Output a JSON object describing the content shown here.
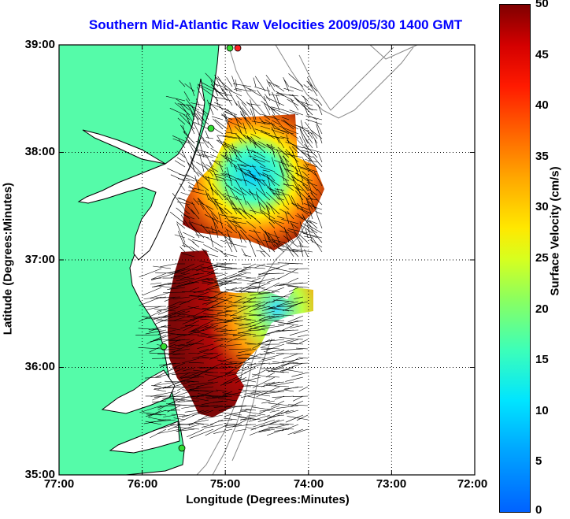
{
  "title": "Southern Mid-Atlantic Raw Velocities 2009/05/30 1400 GMT",
  "x_axis": {
    "label": "Longitude (Degrees:Minutes)",
    "ticks": [
      "77:00",
      "76:00",
      "75:00",
      "74:00",
      "73:00",
      "72:00"
    ]
  },
  "y_axis": {
    "label": "Latitude (Degrees:Minutes)",
    "ticks": [
      "39:00",
      "38:00",
      "37:00",
      "36:00",
      "35:00"
    ]
  },
  "colorbar": {
    "label": "Surface Velocity (cm/s)",
    "ticks": [
      "50",
      "45",
      "40",
      "35",
      "30",
      "25",
      "20",
      "15",
      "10",
      "5",
      "0"
    ],
    "range": [
      0,
      50
    ]
  },
  "colors": {
    "land": "#55fba9",
    "coastline": "#000000",
    "bathymetry": "#888888",
    "station": "#33dd33",
    "station_active": "#ff2222",
    "title": "#0000ff"
  },
  "chart_data": {
    "type": "map",
    "lon_range": [
      -77.0,
      -72.0
    ],
    "lat_range": [
      35.0,
      39.0
    ],
    "grid": true
  }
}
